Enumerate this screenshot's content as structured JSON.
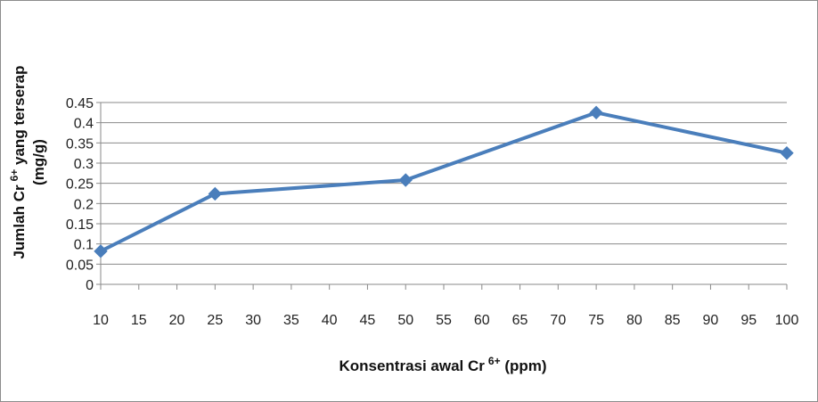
{
  "chart_data": {
    "type": "line",
    "title": "",
    "xlabel_main": "Konsentrasi awal Cr",
    "xlabel_sup": "6+",
    "xlabel_tail": " (ppm)",
    "ylabel_main": "Jumlah Cr",
    "ylabel_sup": "6+",
    "ylabel_tail": " yang terserap",
    "ylabel_line2": "(mg/g)",
    "xlim": [
      10,
      100
    ],
    "x_ticks": [
      "10",
      "15",
      "20",
      "25",
      "30",
      "35",
      "40",
      "45",
      "50",
      "55",
      "60",
      "65",
      "70",
      "75",
      "80",
      "85",
      "90",
      "95",
      "100"
    ],
    "ylim": [
      0,
      0.45
    ],
    "y_ticks": [
      "0",
      "0.05",
      "0.1",
      "0.15",
      "0.2",
      "0.25",
      "0.3",
      "0.35",
      "0.4",
      "0.45"
    ],
    "grid": true,
    "series": [
      {
        "x": [
          10,
          25,
          50,
          75,
          100
        ],
        "y": [
          0.082,
          0.224,
          0.258,
          0.425,
          0.325
        ],
        "color": "#4a7ebb",
        "marker": "diamond"
      }
    ]
  }
}
